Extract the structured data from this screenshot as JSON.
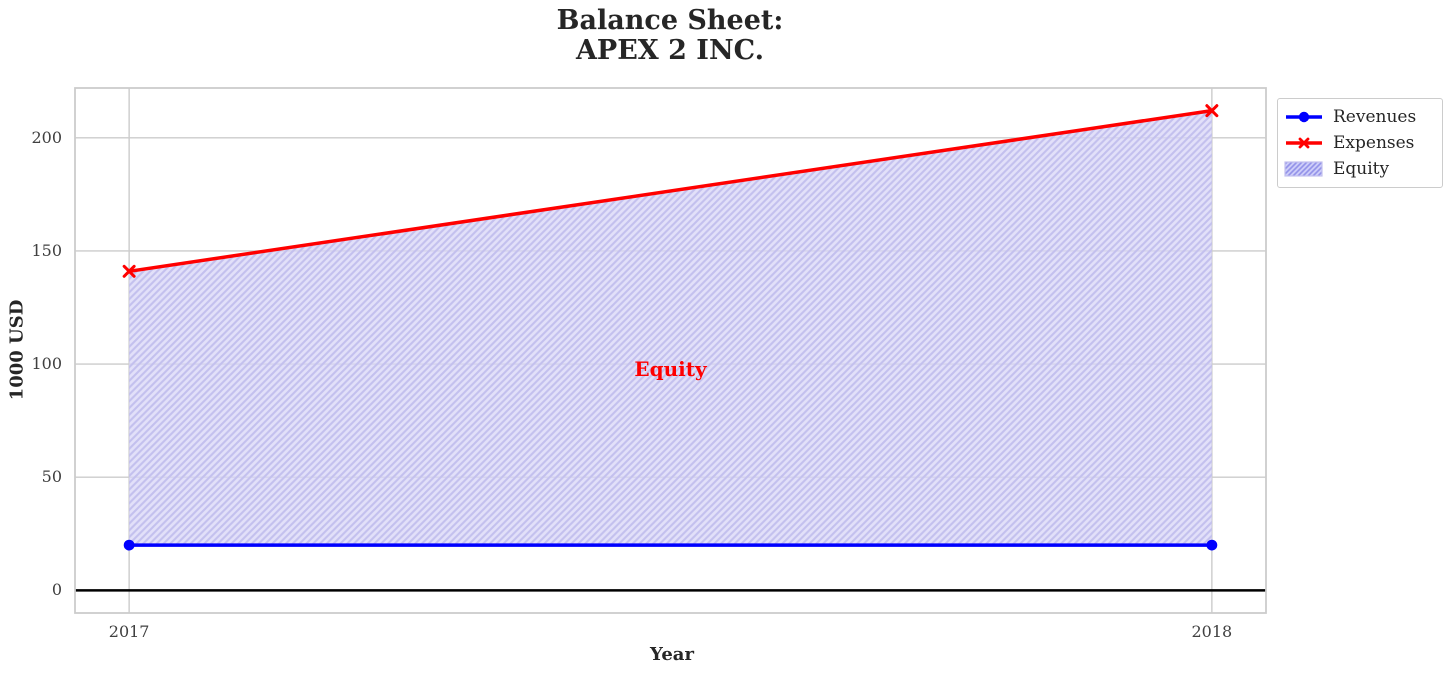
{
  "chart_data": {
    "type": "line",
    "title": "Balance Sheet:\nAPEX 2 INC.",
    "xlabel": "Year",
    "ylabel": "1000 USD",
    "x": [
      2017,
      2018
    ],
    "series": [
      {
        "name": "Revenues",
        "values": [
          20,
          20
        ],
        "color": "#0000ff",
        "marker": "circle",
        "linewidth": 3.5
      },
      {
        "name": "Expenses",
        "values": [
          141,
          212
        ],
        "color": "#ff0000",
        "marker": "x",
        "linewidth": 3.5
      }
    ],
    "area": {
      "name": "Equity",
      "between": [
        "Revenues",
        "Expenses"
      ],
      "fill": "#d8d5f6",
      "hatch": "///",
      "hatch_color": "#c3c0ee",
      "legend_hatch_color": "#9392e9"
    },
    "annotation": {
      "text": "Equity",
      "x": 2017.5,
      "y": 98,
      "color": "#ff0000"
    },
    "xlim": [
      2016.95,
      2018.05
    ],
    "ylim": [
      -10,
      222
    ],
    "xticks": [
      2017,
      2018
    ],
    "yticks": [
      0,
      50,
      100,
      150,
      200
    ],
    "grid": true,
    "grid_color": "#cccccc",
    "zero_line": true,
    "zero_line_color": "#000000",
    "legend_position": "upper-right-outside"
  }
}
